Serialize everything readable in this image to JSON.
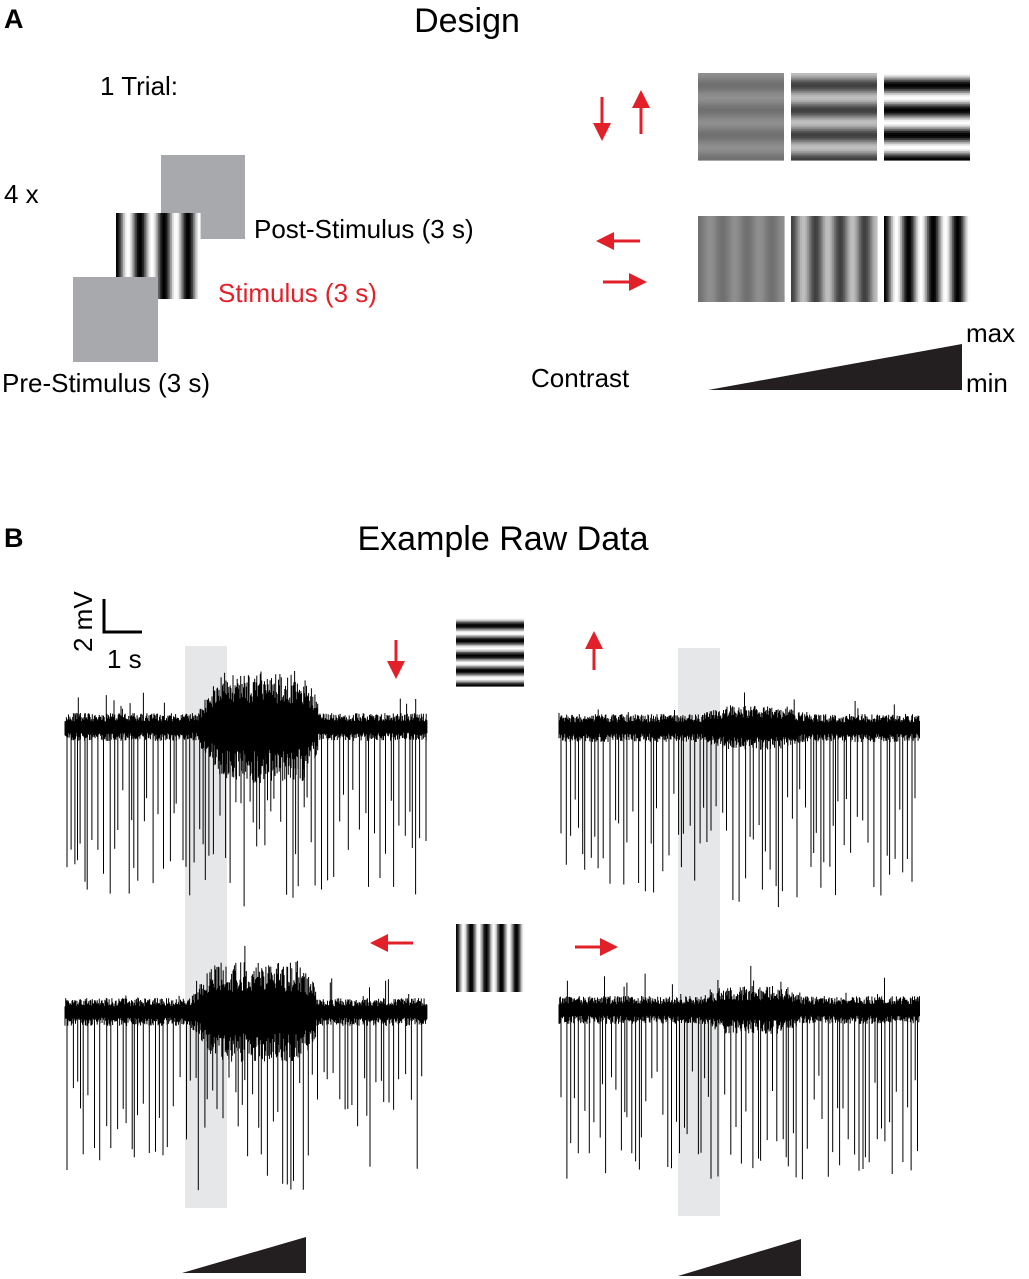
{
  "panel_a": {
    "letter": "A",
    "title": "Design",
    "trial_label": "1 Trial:",
    "repeat_label": "4 x",
    "post_stimulus_label": "Post-Stimulus (3 s)",
    "stimulus_label": "Stimulus (3 s)",
    "pre_stimulus_label": "Pre-Stimulus (3 s)",
    "contrast_label": "Contrast",
    "contrast_max_label": "max",
    "contrast_min_label": "min",
    "contrast_levels": [
      0.12,
      0.5,
      1.0
    ],
    "directions": [
      "down",
      "up",
      "left",
      "right"
    ]
  },
  "panel_b": {
    "letter": "B",
    "title": "Example Raw Data",
    "scale_bar_y_label": "2 mV",
    "scale_bar_x_label": "1 s",
    "traces": [
      {
        "direction": "down",
        "grating": "horizontal"
      },
      {
        "direction": "up",
        "grating": "horizontal"
      },
      {
        "direction": "left",
        "grating": "vertical"
      },
      {
        "direction": "right",
        "grating": "vertical"
      }
    ]
  },
  "colors": {
    "accent_red": "#e2202a",
    "gray_screen": "#a7a9ac",
    "stimulus_shading": "#e6e7e8",
    "ink": "#000000"
  }
}
